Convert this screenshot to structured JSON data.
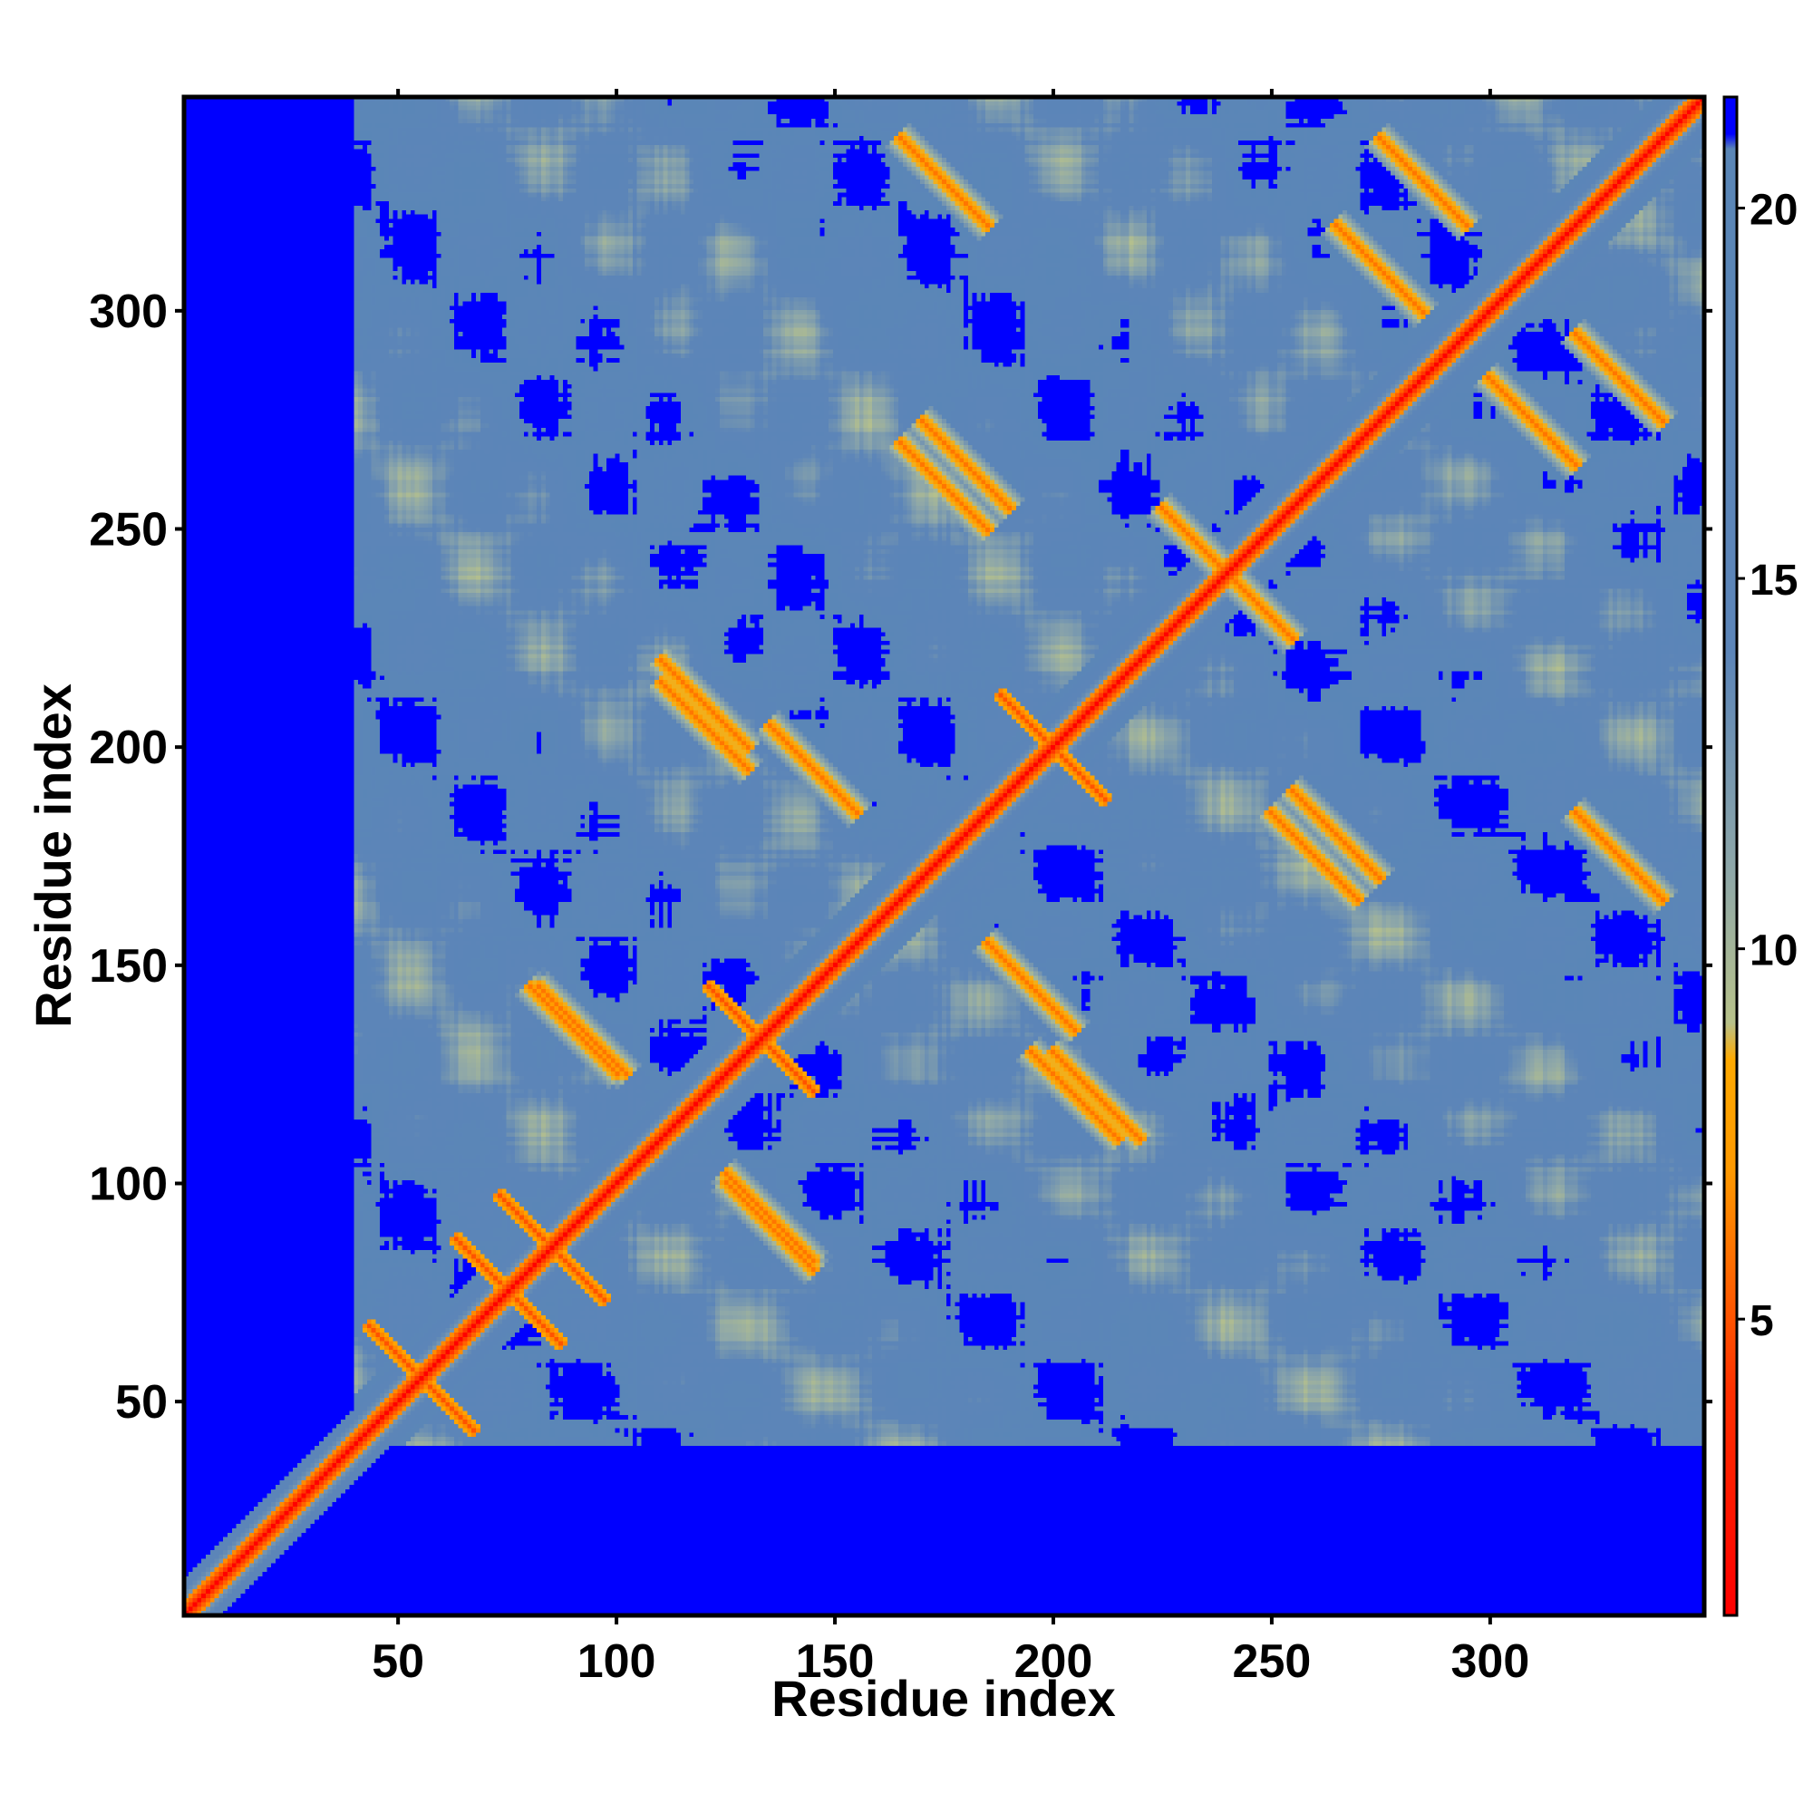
{
  "chart_data": {
    "type": "heatmap",
    "title": "",
    "xlabel": "Residue index",
    "ylabel": "Residue index",
    "xlim": [
      1,
      349
    ],
    "ylim": [
      1,
      349
    ],
    "x_ticks": [
      50,
      100,
      150,
      200,
      250,
      300
    ],
    "y_ticks": [
      50,
      100,
      150,
      200,
      250,
      300
    ],
    "x_tick_labels": [
      "50",
      "100",
      "150",
      "200",
      "250",
      "300"
    ],
    "y_tick_labels": [
      "50",
      "100",
      "150",
      "200",
      "250",
      "300"
    ],
    "colorbar": {
      "range": [
        1,
        21.5
      ],
      "ticks": [
        5,
        10,
        15,
        20
      ],
      "tick_labels": [
        "5",
        "10",
        "15",
        "20"
      ],
      "stops": [
        {
          "value": 1,
          "color": "#ff0000"
        },
        {
          "value": 4,
          "color": "#ff3000"
        },
        {
          "value": 7,
          "color": "#ff9900"
        },
        {
          "value": 8.5,
          "color": "#ffaa00"
        },
        {
          "value": 9,
          "color": "#b8c28a"
        },
        {
          "value": 11,
          "color": "#8fa8a8"
        },
        {
          "value": 14,
          "color": "#5c85b8"
        },
        {
          "value": 20.8,
          "color": "#5a86b7"
        },
        {
          "value": 21,
          "color": "#0000ff"
        }
      ]
    },
    "value_meaning": "pairwise residue distance map, symmetric; saturated blue = values above 21 or no data",
    "features": {
      "diagonal": {
        "from": 1,
        "to": 349,
        "value_on_diagonal": 1
      },
      "lower_left_blank": {
        "x_max": 40,
        "y_max": 40
      },
      "cross_contacts_near": [
        [
          55,
          55
        ],
        [
          75,
          75
        ],
        [
          85,
          85
        ],
        [
          133,
          133
        ],
        [
          200,
          200
        ]
      ],
      "offdiagonal_contact_bands": [
        {
          "x": 90,
          "y": 135
        },
        {
          "x": 135,
          "y": 92
        },
        {
          "x": 120,
          "y": 205
        },
        {
          "x": 195,
          "y": 145
        },
        {
          "x": 210,
          "y": 120
        },
        {
          "x": 175,
          "y": 260
        },
        {
          "x": 265,
          "y": 180
        },
        {
          "x": 245,
          "y": 235
        },
        {
          "x": 310,
          "y": 275
        },
        {
          "x": 285,
          "y": 330
        },
        {
          "x": 175,
          "y": 330
        },
        {
          "x": 330,
          "y": 175
        }
      ]
    }
  }
}
